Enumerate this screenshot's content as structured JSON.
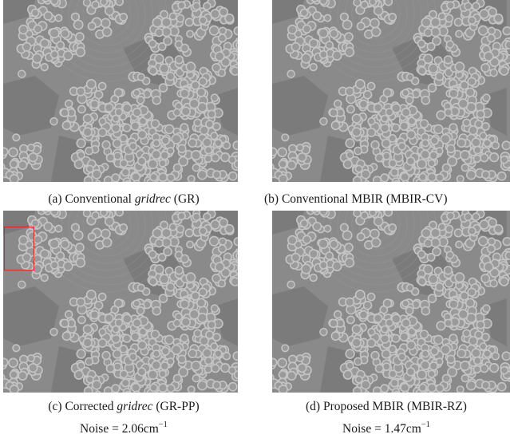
{
  "panels": [
    {
      "id": "a",
      "label": "(a)",
      "pre": "Conventional",
      "italic": "gridrec",
      "post": "(GR)",
      "noise": ""
    },
    {
      "id": "b",
      "label": "(b)",
      "pre": "Conventional MBIR",
      "italic": "",
      "post": "(MBIR-CV)",
      "noise": ""
    },
    {
      "id": "c",
      "label": "(c)",
      "pre": "Corrected",
      "italic": "gridrec",
      "post": "(GR-PP)",
      "noise": "Noise = 2.06cm",
      "noise_exp": "−1"
    },
    {
      "id": "d",
      "label": "(d)",
      "pre": "Proposed MBIR",
      "italic": "",
      "post": "(MBIR-RZ)",
      "noise": "Noise = 1.47cm",
      "noise_exp": "−1"
    }
  ],
  "colors": {
    "roi": "#d0262b",
    "matrix": "#8a8a8a",
    "fiber_ring": "#c4c4c4",
    "fiber_core": "#9a9a9a",
    "dark_region": "#707070"
  }
}
